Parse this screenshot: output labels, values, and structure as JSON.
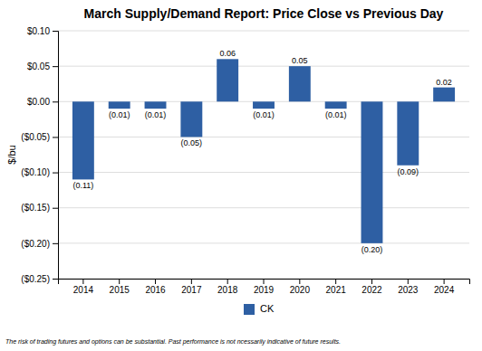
{
  "chart_data": {
    "type": "bar",
    "title": "March Supply/Demand Report: Price Close vs Previous Day",
    "ylabel": "$/bu",
    "categories": [
      "2014",
      "2015",
      "2016",
      "2017",
      "2018",
      "2019",
      "2020",
      "2021",
      "2022",
      "2023",
      "2024"
    ],
    "series": [
      {
        "name": "CK",
        "color": "#2E5FA3",
        "values": [
          -0.11,
          -0.01,
          -0.01,
          -0.05,
          0.06,
          -0.01,
          0.05,
          -0.01,
          -0.2,
          -0.09,
          0.02
        ],
        "value_labels": [
          "(0.11)",
          "(0.01)",
          "(0.01)",
          "(0.05)",
          "0.06",
          "(0.01)",
          "0.05",
          "(0.01)",
          "(0.20)",
          "(0.09)",
          "0.02"
        ]
      }
    ],
    "ylim": [
      -0.25,
      0.1
    ],
    "yticks": [
      {
        "value": -0.25,
        "label": "($0.25)"
      },
      {
        "value": -0.2,
        "label": "($0.20)"
      },
      {
        "value": -0.15,
        "label": "($0.15)"
      },
      {
        "value": -0.1,
        "label": "($0.10)"
      },
      {
        "value": -0.05,
        "label": "($0.05)"
      },
      {
        "value": 0.0,
        "label": "$0.00"
      },
      {
        "value": 0.05,
        "label": "$0.05"
      },
      {
        "value": 0.1,
        "label": "$0.10"
      }
    ],
    "grid": true,
    "data_labels": true,
    "legend": "bottom",
    "annotations": [
      "The risk of trading futures and options can be substantial.  Past performance is not ncessarily indicative of future results."
    ]
  }
}
